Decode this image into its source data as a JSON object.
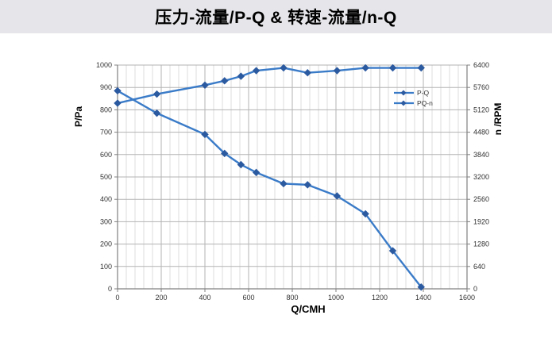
{
  "header": {
    "title": "压力-流量/P-Q &  转速-流量/n-Q"
  },
  "colors": {
    "header_bg": "#E6E6EA",
    "series_line": "#3A7BC8",
    "marker_fill": "#2C5AA0",
    "grid_major": "#B3B3B3",
    "grid_minor": "#DCDCDC",
    "axis_line": "#808080",
    "tick_text": "#333333",
    "axis_title_text": "#000000"
  },
  "chart_data": {
    "type": "line",
    "title": "压力-流量/P-Q &  转速-流量/n-Q",
    "xlabel": "Q/CMH",
    "ylabel_left": "P/Pa",
    "ylabel_right": "n /RPM",
    "xlim": [
      0,
      1600
    ],
    "xtick_step": 200,
    "x_minor_step": 40,
    "ylim_left": [
      0,
      1000
    ],
    "ytick_step_left": 100,
    "ylim_right": [
      0,
      6400
    ],
    "ytick_step_right": 640,
    "grid": true,
    "legend_position": "inside-right-top",
    "legend_entries": [
      "P-Q",
      "PQ-n"
    ],
    "x": [
      0,
      180,
      400,
      490,
      565,
      635,
      760,
      870,
      1005,
      1135,
      1260,
      1390
    ],
    "series": [
      {
        "name": "P-Q",
        "axis": "left",
        "unit": "Pa",
        "values": [
          885,
          785,
          690,
          605,
          555,
          520,
          470,
          465,
          415,
          335,
          170,
          8
        ]
      },
      {
        "name": "PQ-n",
        "axis": "right",
        "unit": "RPM",
        "values": [
          5310,
          5570,
          5825,
          5950,
          6080,
          6240,
          6320,
          6180,
          6240,
          6320,
          6320,
          6320
        ]
      }
    ]
  }
}
